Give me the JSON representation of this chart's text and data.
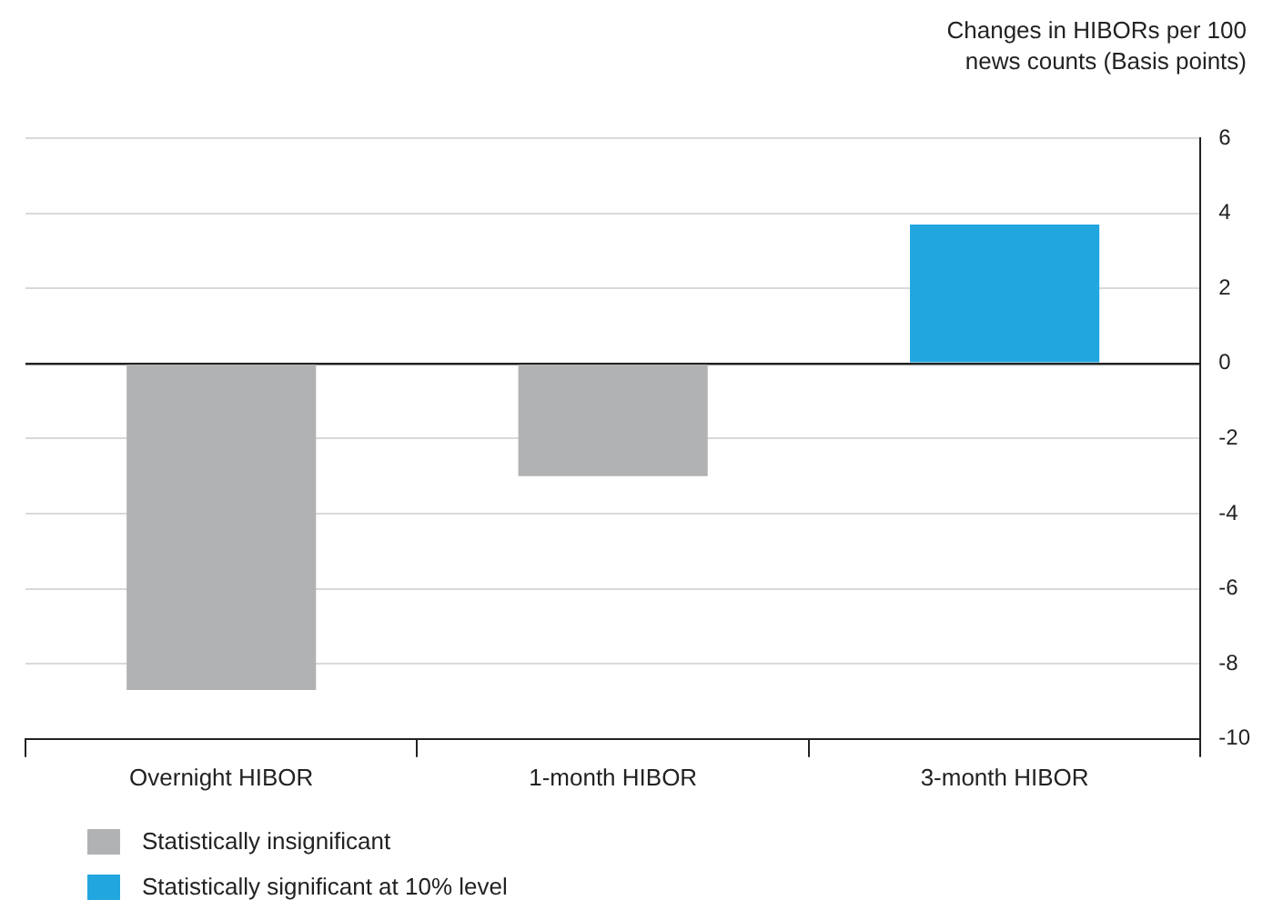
{
  "chart_data": {
    "type": "bar",
    "ylabel": "Changes in HIBORs per 100 news counts (Basis points)",
    "categories": [
      "Overnight HIBOR",
      "1-month HIBOR",
      "3-month HIBOR"
    ],
    "series": [
      {
        "name": "Statistically insignificant",
        "color": "#b1b2b4",
        "values": [
          -8.7,
          -3.0,
          null
        ]
      },
      {
        "name": "Statistically significant at 10% level",
        "color": "#22a6e0",
        "values": [
          null,
          null,
          3.7
        ]
      }
    ],
    "ylim": [
      -10,
      6
    ],
    "yticks": [
      -10,
      -8,
      -6,
      -4,
      -2,
      0,
      2,
      4,
      6
    ],
    "grid": "y",
    "legend": "bottom left"
  }
}
